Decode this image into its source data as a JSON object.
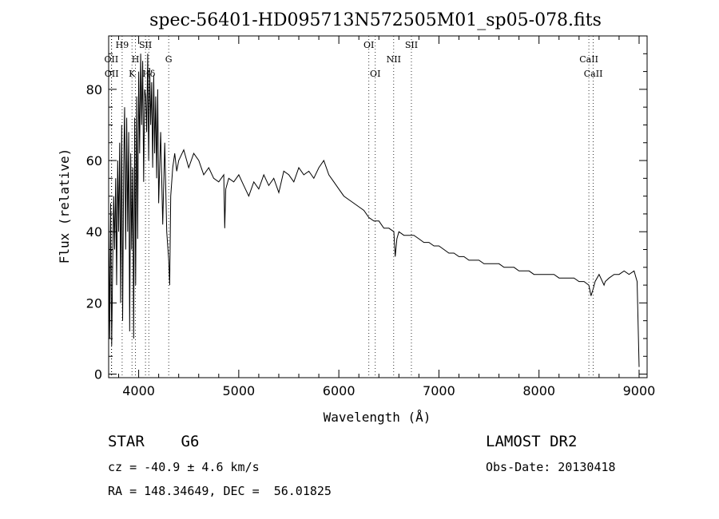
{
  "chart_data": {
    "type": "line",
    "title": "spec-56401-HD095713N572505M01_sp05-078.fits",
    "xlabel": "Wavelength (Å)",
    "ylabel": "Flux (relative)",
    "xlim": [
      3700,
      9080
    ],
    "ylim": [
      -1,
      95
    ],
    "xticks": [
      4000,
      5000,
      6000,
      7000,
      8000,
      9000
    ],
    "yticks": [
      0,
      20,
      40,
      60,
      80
    ],
    "series": [
      {
        "x": [
          3700,
          3710,
          3720,
          3730,
          3740,
          3750,
          3760,
          3770,
          3780,
          3790,
          3800,
          3810,
          3820,
          3830,
          3840,
          3850,
          3860,
          3870,
          3880,
          3890,
          3900,
          3910,
          3920,
          3930,
          3940,
          3950,
          3960,
          3970,
          3980,
          3990,
          4000,
          4010,
          4020,
          4030,
          4040,
          4050,
          4060,
          4070,
          4080,
          4090,
          4100,
          4110,
          4120,
          4130,
          4140,
          4150,
          4160,
          4170,
          4180,
          4190,
          4200,
          4220,
          4240,
          4260,
          4280,
          4300,
          4310,
          4320,
          4340,
          4360,
          4380,
          4400,
          4450,
          4500,
          4550,
          4600,
          4650,
          4700,
          4750,
          4800,
          4850,
          4860,
          4870,
          4900,
          4950,
          5000,
          5050,
          5100,
          5150,
          5200,
          5250,
          5300,
          5350,
          5400,
          5450,
          5500,
          5550,
          5600,
          5650,
          5700,
          5750,
          5800,
          5850,
          5900,
          5950,
          6000,
          6050,
          6100,
          6150,
          6200,
          6250,
          6300,
          6350,
          6400,
          6450,
          6500,
          6550,
          6563,
          6580,
          6600,
          6650,
          6700,
          6750,
          6800,
          6850,
          6900,
          6950,
          7000,
          7050,
          7100,
          7150,
          7200,
          7250,
          7300,
          7350,
          7400,
          7450,
          7500,
          7550,
          7600,
          7650,
          7700,
          7750,
          7800,
          7850,
          7900,
          7950,
          8000,
          8050,
          8100,
          8150,
          8200,
          8250,
          8300,
          8350,
          8400,
          8450,
          8498,
          8520,
          8542,
          8560,
          8600,
          8650,
          8662,
          8700,
          8750,
          8800,
          8850,
          8900,
          8950,
          8980,
          9000
        ],
        "values": [
          45,
          10,
          48,
          8,
          30,
          50,
          35,
          55,
          25,
          60,
          40,
          65,
          20,
          70,
          15,
          58,
          75,
          35,
          72,
          40,
          68,
          12,
          62,
          35,
          58,
          10,
          72,
          25,
          78,
          38,
          85,
          62,
          90,
          70,
          88,
          54,
          80,
          78,
          68,
          90,
          60,
          86,
          70,
          82,
          58,
          84,
          62,
          78,
          55,
          80,
          48,
          68,
          42,
          65,
          40,
          32,
          25,
          50,
          58,
          62,
          57,
          60,
          63,
          58,
          62,
          60,
          56,
          58,
          55,
          54,
          56,
          41,
          52,
          55,
          54,
          56,
          53,
          50,
          54,
          52,
          56,
          53,
          55,
          51,
          57,
          56,
          54,
          58,
          56,
          57,
          55,
          58,
          60,
          56,
          54,
          52,
          50,
          49,
          48,
          47,
          46,
          44,
          43,
          43,
          41,
          41,
          40,
          33,
          38,
          40,
          39,
          39,
          39,
          38,
          37,
          37,
          36,
          36,
          35,
          34,
          34,
          33,
          33,
          32,
          32,
          32,
          31,
          31,
          31,
          31,
          30,
          30,
          30,
          29,
          29,
          29,
          28,
          28,
          28,
          28,
          28,
          27,
          27,
          27,
          27,
          26,
          26,
          25,
          22,
          24,
          26,
          28,
          25,
          26,
          27,
          28,
          28,
          29,
          28,
          29,
          26,
          2
        ]
      }
    ],
    "lines": [
      {
        "x": 3727,
        "label": "OII"
      },
      {
        "x": 3730,
        "label": "OII"
      },
      {
        "x": 3835,
        "label": "H9"
      },
      {
        "x": 3933,
        "label": "K"
      },
      {
        "x": 3968,
        "label": "H"
      },
      {
        "x": 4068,
        "label": "SII"
      },
      {
        "x": 4101,
        "label": "Hδ"
      },
      {
        "x": 4300,
        "label": "G"
      },
      {
        "x": 6300,
        "label": "OI"
      },
      {
        "x": 6364,
        "label": "OI"
      },
      {
        "x": 6548,
        "label": "NII"
      },
      {
        "x": 6725,
        "label": "SII"
      },
      {
        "x": 8498,
        "label": "CaII"
      },
      {
        "x": 8542,
        "label": "CaII"
      }
    ]
  },
  "info": {
    "class_text": "STAR    G6",
    "survey_text": "LAMOST DR2",
    "cz_text": "cz = -40.9 ± 4.6 km/s",
    "obsdate_text": "Obs-Date: 20130418",
    "radec_text": "RA = 148.34649, DEC =  56.01825"
  }
}
